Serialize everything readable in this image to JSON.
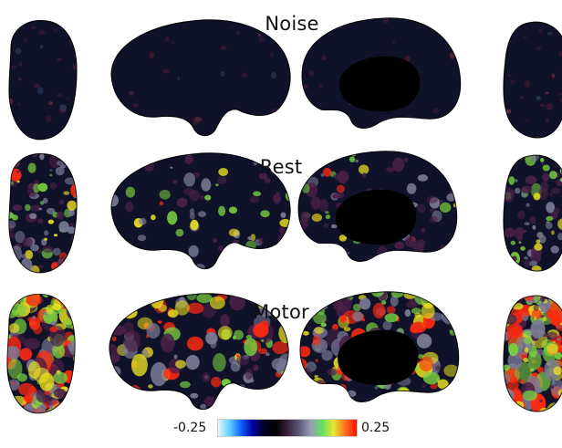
{
  "rows": [
    {
      "key": "noise",
      "title": "Noise",
      "intensity": 0.06
    },
    {
      "key": "rest",
      "title": "Rest",
      "intensity": 0.5
    },
    {
      "key": "motor",
      "title": "Motor",
      "intensity": 1.0
    }
  ],
  "colorbar": {
    "min_label": "-0.25",
    "max_label": "0.25",
    "min": -0.25,
    "max": 0.25,
    "colors": [
      "#e8f6ff",
      "#60d0ff",
      "#1060ff",
      "#0000a0",
      "#000020",
      "#000000",
      "#3a2038",
      "#5a5a7a",
      "#9a9ab8",
      "#60e060",
      "#e8e830",
      "#ff7020",
      "#ff1000"
    ]
  },
  "palette": {
    "base": "#10122a",
    "dark": "#05060e",
    "purple": "#4a2048",
    "gray": "#7a7a96",
    "green": "#7ad040",
    "yellow": "#e8e020",
    "red": "#ff2a10",
    "medial_wall": "#000000"
  },
  "views": [
    "lateral-left",
    "medial-left",
    "medial-right",
    "lateral-right"
  ]
}
